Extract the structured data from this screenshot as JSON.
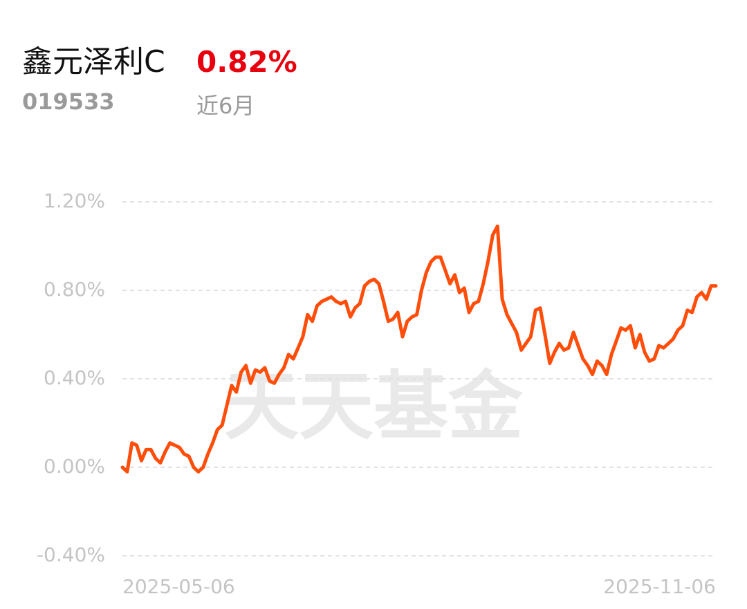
{
  "header": {
    "name": "鑫元泽利C",
    "return": "0.82%",
    "code": "019533",
    "period": "近6月"
  },
  "watermark": "天天基金",
  "chart_data": {
    "type": "line",
    "categories": [
      "2025-05-06",
      null,
      null,
      null,
      null,
      null,
      null,
      null,
      null,
      null,
      null,
      null,
      null,
      null,
      null,
      null,
      null,
      null,
      null,
      null,
      null,
      null,
      null,
      null,
      null,
      null,
      null,
      null,
      null,
      null,
      null,
      null,
      null,
      null,
      null,
      null,
      null,
      null,
      null,
      null,
      null,
      null,
      null,
      null,
      null,
      null,
      null,
      null,
      null,
      null,
      null,
      null,
      null,
      null,
      null,
      null,
      null,
      null,
      null,
      null,
      null,
      null,
      null,
      null,
      null,
      null,
      null,
      null,
      null,
      null,
      null,
      null,
      null,
      null,
      null,
      null,
      null,
      null,
      null,
      null,
      null,
      null,
      null,
      null,
      null,
      null,
      null,
      null,
      null,
      null,
      null,
      null,
      null,
      null,
      null,
      null,
      null,
      null,
      null,
      null,
      null,
      null,
      null,
      null,
      null,
      null,
      null,
      null,
      null,
      null,
      null,
      null,
      null,
      null,
      null,
      null,
      null,
      null,
      null,
      null,
      null,
      null,
      null,
      null,
      null,
      "2025-11-06"
    ],
    "series": [
      {
        "color": "#ff4d0a",
        "values": [
          0.0,
          -0.02,
          0.11,
          0.1,
          0.03,
          0.08,
          0.08,
          0.04,
          0.02,
          0.07,
          0.11,
          0.1,
          0.09,
          0.06,
          0.05,
          0.0,
          -0.02,
          0.0,
          0.06,
          0.11,
          0.17,
          0.19,
          0.28,
          0.37,
          0.34,
          0.43,
          0.46,
          0.38,
          0.44,
          0.43,
          0.45,
          0.39,
          0.38,
          0.42,
          0.45,
          0.51,
          0.49,
          0.54,
          0.59,
          0.69,
          0.66,
          0.73,
          0.75,
          0.76,
          0.77,
          0.75,
          0.74,
          0.75,
          0.68,
          0.72,
          0.74,
          0.82,
          0.84,
          0.85,
          0.83,
          0.75,
          0.66,
          0.67,
          0.7,
          0.59,
          0.66,
          0.68,
          0.69,
          0.8,
          0.88,
          0.93,
          0.95,
          0.95,
          0.89,
          0.83,
          0.87,
          0.79,
          0.81,
          0.7,
          0.74,
          0.75,
          0.83,
          0.93,
          1.05,
          1.09,
          0.76,
          0.69,
          0.65,
          0.61,
          0.53,
          0.56,
          0.59,
          0.71,
          0.72,
          0.6,
          0.47,
          0.52,
          0.56,
          0.53,
          0.54,
          0.61,
          0.55,
          0.49,
          0.46,
          0.42,
          0.48,
          0.46,
          0.42,
          0.51,
          0.57,
          0.63,
          0.62,
          0.64,
          0.54,
          0.6,
          0.52,
          0.48,
          0.49,
          0.55,
          0.54,
          0.56,
          0.58,
          0.62,
          0.64,
          0.71,
          0.7,
          0.77,
          0.79,
          0.76,
          0.82,
          0.82
        ]
      }
    ],
    "ylim": [
      -0.4,
      1.2
    ],
    "yticks": [
      {
        "value": -0.4,
        "label": "-0.40%"
      },
      {
        "value": 0,
        "label": "0.00%"
      },
      {
        "value": 0.4,
        "label": "0.40%"
      },
      {
        "value": 0.8,
        "label": "0.80%"
      },
      {
        "value": 1.2,
        "label": "1.20%"
      }
    ],
    "grid": true
  }
}
